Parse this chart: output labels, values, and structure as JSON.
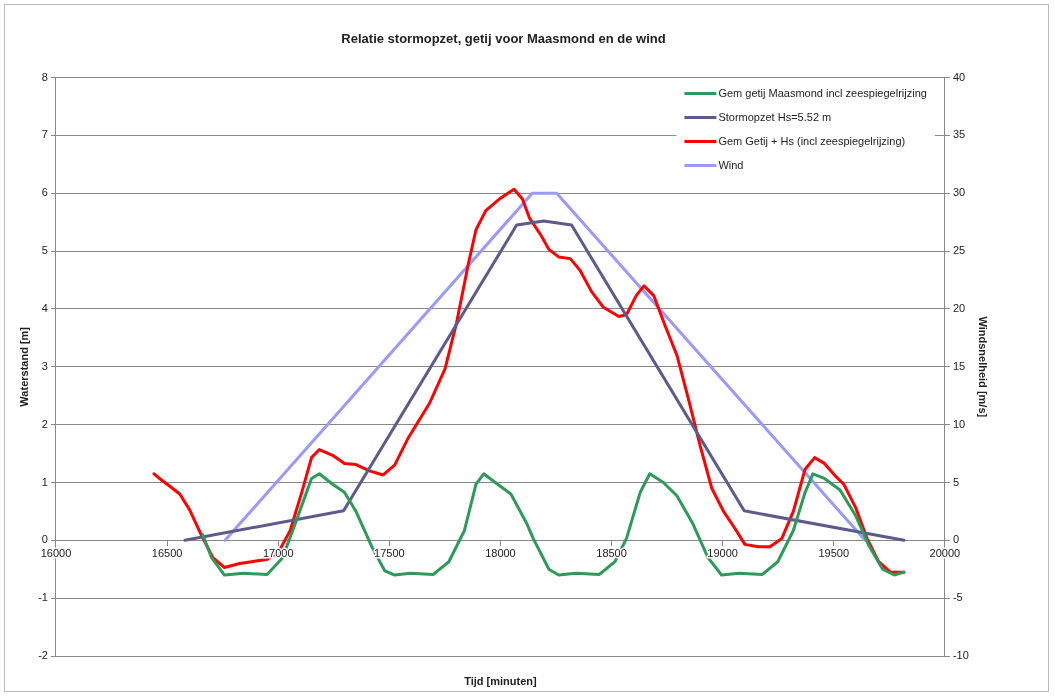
{
  "chart_data": {
    "type": "line",
    "title": "Relatie stormopzet, getij voor Maasmond en de wind",
    "xlabel": "Tijd [minuten]",
    "ylabel": "Waterstand [m]",
    "y2label": "Windsnelheid [m/s]",
    "xlim": [
      16000,
      20000
    ],
    "xticks": [
      16000,
      16500,
      17000,
      17500,
      18000,
      18500,
      19000,
      19500,
      20000
    ],
    "ylim": [
      -2,
      8
    ],
    "yticks": [
      -2,
      -1,
      0,
      1,
      2,
      3,
      4,
      5,
      6,
      7,
      8
    ],
    "y2lim": [
      -10,
      40
    ],
    "y2ticks": [
      -10,
      -5,
      0,
      5,
      10,
      15,
      20,
      25,
      30,
      35,
      40
    ],
    "grid": "y",
    "legend": "top right",
    "marker": "none",
    "line_style": "solid",
    "series": [
      {
        "name": "Gem getij Maasmond incl zeespiegelrijzing",
        "color": "#2e9a5a",
        "x": [
          16660,
          16700,
          16758,
          16845,
          16950,
          17020,
          17090,
          17150,
          17185,
          17245,
          17298,
          17350,
          17420,
          17480,
          17524,
          17594,
          17698,
          17768,
          17838,
          17890,
          17925,
          17977,
          18047,
          18117,
          18148,
          18218,
          18262,
          18340,
          18445,
          18515,
          18567,
          18629,
          18672,
          18733,
          18794,
          18864,
          18934,
          18995,
          19074,
          19179,
          19248,
          19318,
          19371,
          19406,
          19458,
          19528,
          19598,
          19659,
          19720,
          19772,
          19816
        ],
        "values": [
          0.1,
          -0.3,
          -0.6,
          -0.57,
          -0.59,
          -0.3,
          0.43,
          1.07,
          1.15,
          0.97,
          0.83,
          0.5,
          -0.1,
          -0.53,
          -0.6,
          -0.57,
          -0.59,
          -0.37,
          0.17,
          0.97,
          1.15,
          1.0,
          0.8,
          0.3,
          0.03,
          -0.5,
          -0.6,
          -0.57,
          -0.59,
          -0.37,
          0.03,
          0.83,
          1.15,
          1.0,
          0.77,
          0.3,
          -0.3,
          -0.6,
          -0.57,
          -0.59,
          -0.37,
          0.17,
          0.83,
          1.15,
          1.07,
          0.87,
          0.43,
          -0.1,
          -0.5,
          -0.6,
          -0.55
        ]
      },
      {
        "name": "Stormopzet Hs=5.52 m",
        "color": "#5b5b8e",
        "x": [
          16580,
          17294,
          18073,
          18195,
          18320,
          19097,
          19816
        ],
        "values": [
          0,
          0.51,
          5.45,
          5.52,
          5.45,
          0.51,
          0
        ]
      },
      {
        "name": "Gem Getij + Hs (incl zeespiegelrijzing)",
        "color": "#ff0000",
        "x": [
          16441,
          16479,
          16514,
          16557,
          16601,
          16653,
          16706,
          16758,
          16827,
          16880,
          16949,
          17002,
          17054,
          17106,
          17150,
          17185,
          17245,
          17298,
          17350,
          17411,
          17472,
          17524,
          17585,
          17681,
          17751,
          17803,
          17855,
          17890,
          17934,
          17995,
          18061,
          18099,
          18131,
          18183,
          18218,
          18262,
          18314,
          18358,
          18410,
          18463,
          18533,
          18567,
          18611,
          18646,
          18690,
          18742,
          18794,
          18847,
          18899,
          18951,
          19004,
          19056,
          19100,
          19161,
          19213,
          19266,
          19318,
          19371,
          19414,
          19458,
          19510,
          19545,
          19598,
          19650,
          19702,
          19755,
          19816
        ],
        "values": [
          1.15,
          1.03,
          0.93,
          0.8,
          0.53,
          0.1,
          -0.3,
          -0.47,
          -0.4,
          -0.37,
          -0.33,
          -0.2,
          0.17,
          0.83,
          1.43,
          1.57,
          1.47,
          1.33,
          1.31,
          1.2,
          1.13,
          1.3,
          1.77,
          2.37,
          2.97,
          3.77,
          4.77,
          5.37,
          5.7,
          5.9,
          6.07,
          5.9,
          5.57,
          5.27,
          5.03,
          4.9,
          4.87,
          4.67,
          4.3,
          4.03,
          3.87,
          3.9,
          4.23,
          4.4,
          4.23,
          3.7,
          3.2,
          2.43,
          1.63,
          0.9,
          0.5,
          0.2,
          -0.07,
          -0.11,
          -0.11,
          0.03,
          0.5,
          1.23,
          1.43,
          1.33,
          1.1,
          0.97,
          0.57,
          0.03,
          -0.37,
          -0.55,
          -0.55
        ]
      },
      {
        "name": "Wind",
        "color": "#9999ff",
        "axis": "y2",
        "x": [
          16761,
          18143,
          18253,
          19641
        ],
        "values": [
          0,
          30,
          30,
          0
        ]
      }
    ]
  }
}
